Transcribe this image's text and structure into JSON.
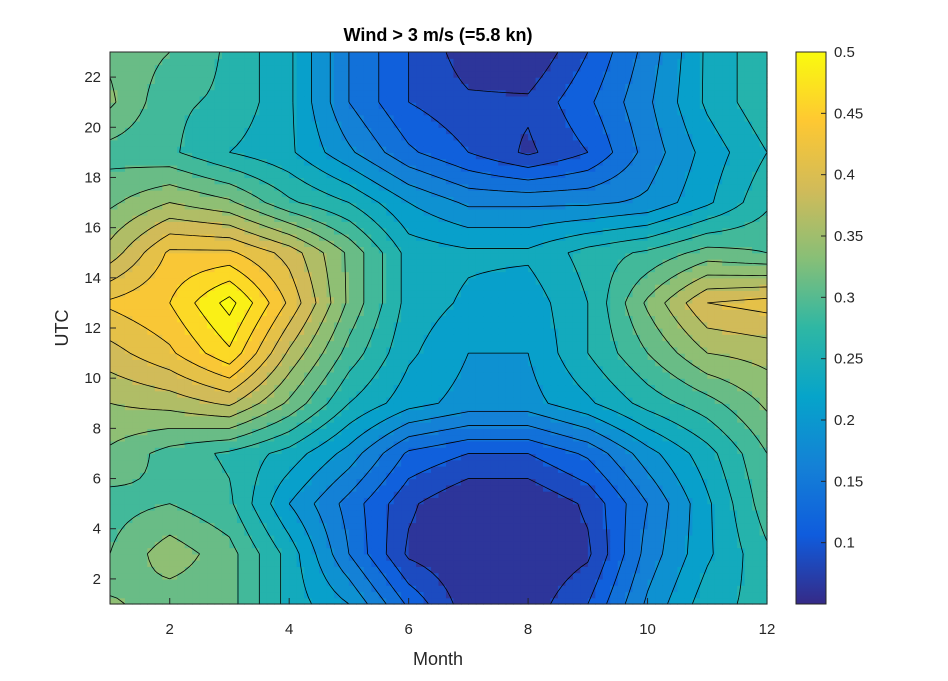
{
  "chart_data": {
    "type": "contourf",
    "title": "Wind > 3 m/s (=5.8 kn)",
    "xlabel": "Month",
    "ylabel": "UTC",
    "xlim": [
      1,
      12
    ],
    "ylim": [
      1,
      23
    ],
    "x_ticks": [
      2,
      4,
      6,
      8,
      10,
      12
    ],
    "y_ticks": [
      2,
      4,
      6,
      8,
      10,
      12,
      14,
      16,
      18,
      20,
      22
    ],
    "x": [
      1,
      2,
      3,
      4,
      5,
      6,
      7,
      8,
      9,
      10,
      11,
      12
    ],
    "y": [
      1,
      3,
      5,
      7,
      9,
      11,
      13,
      15,
      17,
      19,
      21,
      23
    ],
    "z": [
      [
        0.33,
        0.31,
        0.31,
        0.24,
        0.2,
        0.12,
        0.06,
        0.06,
        0.1,
        0.18,
        0.24,
        0.26
      ],
      [
        0.3,
        0.34,
        0.31,
        0.24,
        0.15,
        0.07,
        0.05,
        0.05,
        0.07,
        0.16,
        0.22,
        0.27
      ],
      [
        0.29,
        0.3,
        0.28,
        0.2,
        0.14,
        0.08,
        0.05,
        0.05,
        0.08,
        0.15,
        0.22,
        0.29
      ],
      [
        0.32,
        0.29,
        0.27,
        0.24,
        0.19,
        0.12,
        0.1,
        0.1,
        0.13,
        0.19,
        0.24,
        0.3
      ],
      [
        0.35,
        0.36,
        0.38,
        0.32,
        0.25,
        0.21,
        0.19,
        0.19,
        0.22,
        0.26,
        0.29,
        0.33
      ],
      [
        0.39,
        0.42,
        0.47,
        0.37,
        0.29,
        0.23,
        0.2,
        0.2,
        0.25,
        0.3,
        0.35,
        0.36
      ],
      [
        0.43,
        0.45,
        0.51,
        0.42,
        0.32,
        0.24,
        0.22,
        0.21,
        0.25,
        0.33,
        0.4,
        0.41
      ],
      [
        0.36,
        0.43,
        0.43,
        0.39,
        0.32,
        0.24,
        0.23,
        0.23,
        0.26,
        0.28,
        0.31,
        0.3
      ],
      [
        0.32,
        0.35,
        0.33,
        0.28,
        0.25,
        0.2,
        0.17,
        0.17,
        0.17,
        0.18,
        0.22,
        0.27
      ],
      [
        0.29,
        0.28,
        0.25,
        0.23,
        0.18,
        0.13,
        0.1,
        0.07,
        0.1,
        0.16,
        0.21,
        0.25
      ],
      [
        0.33,
        0.28,
        0.27,
        0.23,
        0.15,
        0.1,
        0.08,
        0.08,
        0.12,
        0.17,
        0.23,
        0.27
      ],
      [
        0.32,
        0.3,
        0.27,
        0.23,
        0.15,
        0.1,
        0.06,
        0.05,
        0.1,
        0.16,
        0.23,
        0.27
      ]
    ],
    "levels": [
      0.05,
      0.075,
      0.1,
      0.125,
      0.15,
      0.175,
      0.2,
      0.225,
      0.25,
      0.275,
      0.3,
      0.325,
      0.35,
      0.375,
      0.4,
      0.425,
      0.45,
      0.475,
      0.5,
      0.525
    ],
    "colormap": "parula",
    "colorbar": {
      "limits": [
        0.05,
        0.5
      ],
      "ticks": [
        0.1,
        0.15,
        0.2,
        0.25,
        0.3,
        0.35,
        0.4,
        0.45,
        0.5
      ],
      "tick_labels": [
        "0.1",
        "0.15",
        "0.2",
        "0.25",
        "0.3",
        "0.35",
        "0.4",
        "0.45",
        "0.5"
      ]
    },
    "grid": false,
    "contour_line_color": "#000000",
    "colors": {
      "parula": [
        "#352a87",
        "#0f5cdd",
        "#1481d6",
        "#06a4ca",
        "#2eb7a4",
        "#87bf77",
        "#d1bb59",
        "#fec832",
        "#f9fb0e"
      ]
    }
  }
}
